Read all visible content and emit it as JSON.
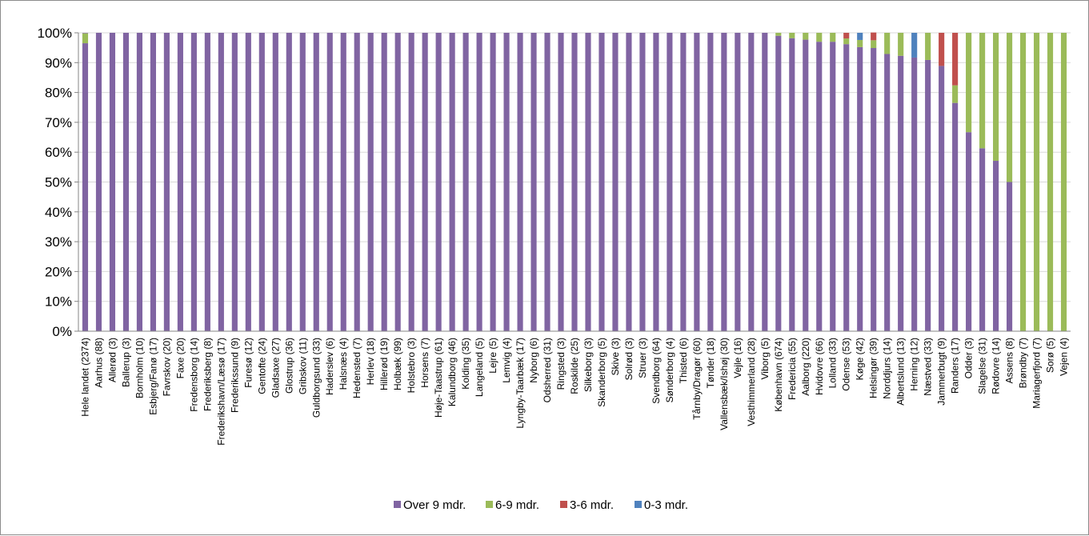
{
  "chart_data": {
    "type": "bar",
    "stacked": true,
    "percent": true,
    "ylim": [
      0,
      100
    ],
    "yticks": [
      "0%",
      "10%",
      "20%",
      "30%",
      "40%",
      "50%",
      "60%",
      "70%",
      "80%",
      "90%",
      "100%"
    ],
    "legend_position": "bottom",
    "categories": [
      "Hele landet (2374)",
      "Aarhus (88)",
      "Allerød (3)",
      "Ballerup (3)",
      "Bornholm (10)",
      "Esbjerg/Fanø (17)",
      "Favrskov (20)",
      "Faxe (20)",
      "Fredensborg (14)",
      "Frederiksberg (8)",
      "Frederikshavn/Læsø (17)",
      "Frederikssund (9)",
      "Furesø (12)",
      "Gentofte (24)",
      "Gladsaxe (27)",
      "Glostrup (36)",
      "Gribskov (11)",
      "Guldborgsund (33)",
      "Haderslev (6)",
      "Halsnæs (4)",
      "Hedensted (7)",
      "Herlev (18)",
      "Hillerød (19)",
      "Holbæk (99)",
      "Holstebro (3)",
      "Horsens (7)",
      "Høje-Taastrup (61)",
      "Kalundborg (46)",
      "Kolding (35)",
      "Langeland (5)",
      "Lejre (5)",
      "Lemvig (4)",
      "Lyngby-Taarbæk (17)",
      "Nyborg (6)",
      "Odsherred (31)",
      "Ringsted (3)",
      "Roskilde (25)",
      "Silkeborg (3)",
      "Skanderborg (5)",
      "Skive (3)",
      "Solrød (3)",
      "Struer (3)",
      "Svendborg (64)",
      "Sønderborg (4)",
      "Thisted (6)",
      "Tårnby/Dragør (60)",
      "Tønder (18)",
      "Vallensbæk/Ishøj (30)",
      "Vejle (16)",
      "Vesthimmerland (28)",
      "Viborg (5)",
      "København (674)",
      "Fredericia (55)",
      "Aalborg (220)",
      "Hvidovre (66)",
      "Lolland (33)",
      "Odense (53)",
      "Køge (42)",
      "Helsingør (39)",
      "Norddjurs (14)",
      "Albertslund (13)",
      "Herning (12)",
      "Næstved (33)",
      "Jammerbugt (9)",
      "Randers (17)",
      "Odder (3)",
      "Slagelse (31)",
      "Rødovre (14)",
      "Assens (8)",
      "Brøndby (7)",
      "Mariagerfjord (7)",
      "Sorø (5)",
      "Vejen (4)"
    ],
    "series": [
      {
        "name": "Over 9 mdr.",
        "color": "#8064a2",
        "values": [
          96.5,
          100,
          100,
          100,
          100,
          100,
          100,
          100,
          100,
          100,
          100,
          100,
          100,
          100,
          100,
          100,
          100,
          100,
          100,
          100,
          100,
          100,
          100,
          100,
          100,
          100,
          100,
          100,
          100,
          100,
          100,
          100,
          100,
          100,
          100,
          100,
          100,
          100,
          100,
          100,
          100,
          100,
          100,
          100,
          100,
          100,
          100,
          100,
          100,
          100,
          100,
          99.0,
          98.2,
          97.7,
          97.0,
          97.0,
          96.2,
          95.2,
          94.9,
          92.9,
          92.3,
          91.7,
          90.9,
          88.9,
          76.5,
          66.7,
          61.3,
          57.1,
          50.0,
          0,
          0,
          0,
          0
        ]
      },
      {
        "name": "6-9 mdr.",
        "color": "#9bbb59",
        "values": [
          3.3,
          0,
          0,
          0,
          0,
          0,
          0,
          0,
          0,
          0,
          0,
          0,
          0,
          0,
          0,
          0,
          0,
          0,
          0,
          0,
          0,
          0,
          0,
          0,
          0,
          0,
          0,
          0,
          0,
          0,
          0,
          0,
          0,
          0,
          0,
          0,
          0,
          0,
          0,
          0,
          0,
          0,
          0,
          0,
          0,
          0,
          0,
          0,
          0,
          0,
          0,
          1.0,
          1.8,
          2.3,
          3.0,
          3.0,
          1.9,
          2.4,
          2.6,
          7.1,
          7.7,
          0,
          9.1,
          0,
          5.9,
          33.3,
          38.7,
          42.9,
          50.0,
          100,
          100,
          100,
          100
        ]
      },
      {
        "name": "3-6 mdr.",
        "color": "#c0504d",
        "values": [
          0.1,
          0,
          0,
          0,
          0,
          0,
          0,
          0,
          0,
          0,
          0,
          0,
          0,
          0,
          0,
          0,
          0,
          0,
          0,
          0,
          0,
          0,
          0,
          0,
          0,
          0,
          0,
          0,
          0,
          0,
          0,
          0,
          0,
          0,
          0,
          0,
          0,
          0,
          0,
          0,
          0,
          0,
          0,
          0,
          0,
          0,
          0,
          0,
          0,
          0,
          0,
          0,
          0,
          0,
          0,
          0,
          1.9,
          0,
          2.6,
          0,
          0,
          0,
          0,
          11.1,
          17.6,
          0,
          0,
          0,
          0,
          0,
          0,
          0,
          0
        ]
      },
      {
        "name": "0-3 mdr.",
        "color": "#4f81bd",
        "values": [
          0.1,
          0,
          0,
          0,
          0,
          0,
          0,
          0,
          0,
          0,
          0,
          0,
          0,
          0,
          0,
          0,
          0,
          0,
          0,
          0,
          0,
          0,
          0,
          0,
          0,
          0,
          0,
          0,
          0,
          0,
          0,
          0,
          0,
          0,
          0,
          0,
          0,
          0,
          0,
          0,
          0,
          0,
          0,
          0,
          0,
          0,
          0,
          0,
          0,
          0,
          0,
          0,
          0,
          0,
          0,
          0,
          0,
          2.4,
          0,
          0,
          0,
          8.3,
          0,
          0,
          0,
          0,
          0,
          0,
          0,
          0,
          0,
          0,
          0
        ]
      }
    ]
  }
}
